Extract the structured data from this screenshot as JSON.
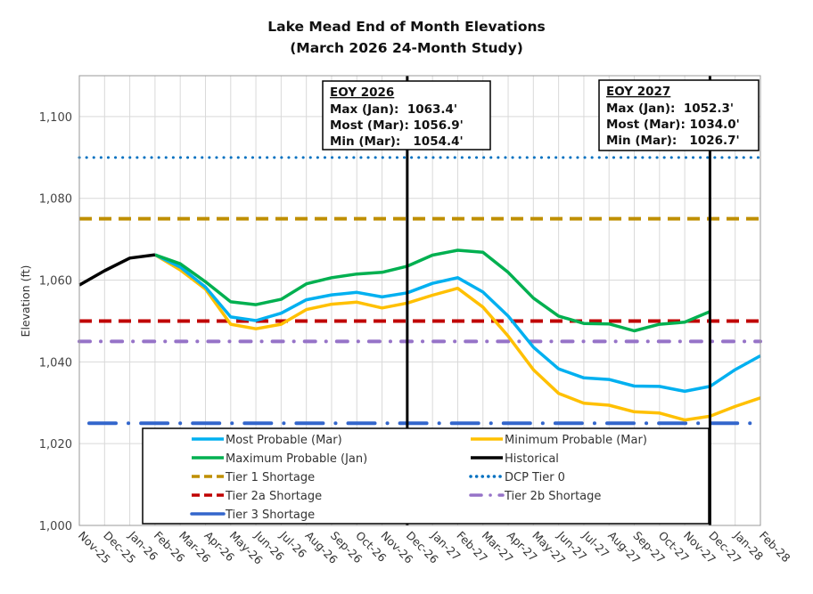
{
  "chart_data": {
    "type": "line",
    "title": "Lake Mead End of Month Elevations",
    "subtitle": "(March 2026 24-Month Study)",
    "xlabel": "",
    "ylabel": "Elevation (ft)",
    "ylim": [
      1000,
      1110
    ],
    "yticks": [
      1000,
      1020,
      1040,
      1060,
      1080,
      1100
    ],
    "ytick_labels": [
      "1,000",
      "1,020",
      "1,040",
      "1,060",
      "1,080",
      "1,100"
    ],
    "grid": true,
    "legend_position": "bottom-inside",
    "categories": [
      "Nov-25",
      "Dec-25",
      "Jan-26",
      "Feb-26",
      "Mar-26",
      "Apr-26",
      "May-26",
      "Jun-26",
      "Jul-26",
      "Aug-26",
      "Sep-26",
      "Oct-26",
      "Nov-26",
      "Dec-26",
      "Jan-27",
      "Feb-27",
      "Mar-27",
      "Apr-27",
      "May-27",
      "Jun-27",
      "Jul-27",
      "Aug-27",
      "Sep-27",
      "Oct-27",
      "Nov-27",
      "Dec-27",
      "Jan-28",
      "Feb-28"
    ],
    "series": [
      {
        "name": "Historical",
        "color": "#000000",
        "style": "solid",
        "values": [
          1058.8,
          1062.3,
          1065.4,
          1066.2,
          null,
          null,
          null,
          null,
          null,
          null,
          null,
          null,
          null,
          null,
          null,
          null,
          null,
          null,
          null,
          null,
          null,
          null,
          null,
          null,
          null,
          null,
          null,
          null
        ]
      },
      {
        "name": "Minimum Probable (Mar)",
        "color": "#FFC000",
        "style": "solid",
        "values": [
          null,
          null,
          null,
          1066.2,
          1062.5,
          1057.8,
          1049.2,
          1048.1,
          1049.2,
          1052.8,
          1054.1,
          1054.6,
          1053.2,
          1054.4,
          1056.3,
          1058.0,
          1053.4,
          1046.3,
          1038.1,
          1032.3,
          1029.9,
          1029.4,
          1027.8,
          1027.5,
          1025.8,
          1026.7,
          1029.1,
          1031.2
        ]
      },
      {
        "name": "Most Probable (Mar)",
        "color": "#00B0F0",
        "style": "solid",
        "values": [
          null,
          null,
          null,
          1066.2,
          1063.2,
          1058.3,
          1051.0,
          1050.1,
          1051.9,
          1055.2,
          1056.4,
          1057.0,
          1055.9,
          1056.9,
          1059.2,
          1060.6,
          1057.1,
          1051.2,
          1043.6,
          1038.3,
          1036.1,
          1035.7,
          1034.1,
          1034.0,
          1032.8,
          1034.0,
          1038.1,
          1041.5
        ]
      },
      {
        "name": "Maximum Probable (Jan)",
        "color": "#00B050",
        "style": "solid",
        "values": [
          null,
          null,
          null,
          1066.2,
          1064.0,
          1059.6,
          1054.7,
          1054.0,
          1055.3,
          1059.1,
          1060.6,
          1061.5,
          1061.9,
          1063.4,
          1066.1,
          1067.3,
          1066.8,
          1061.9,
          1055.6,
          1051.2,
          1049.4,
          1049.3,
          1047.6,
          1049.2,
          1049.7,
          1052.3,
          null,
          null
        ]
      }
    ],
    "reference_lines": [
      {
        "name": "DCP Tier 0",
        "value": 1090,
        "color": "#0070C0",
        "style": "dotted"
      },
      {
        "name": "Tier 1 Shortage",
        "value": 1075,
        "color": "#BF8F00",
        "style": "dashed"
      },
      {
        "name": "Tier 2a Shortage",
        "value": 1050,
        "color": "#C00000",
        "style": "dashed"
      },
      {
        "name": "Tier 2b Shortage",
        "value": 1045,
        "color": "#9673C8",
        "style": "dash-dot"
      },
      {
        "name": "Tier 3 Shortage",
        "value": 1025,
        "color": "#3366CC",
        "style": "long-dash-dot"
      }
    ],
    "vertical_markers": [
      {
        "category": "Dec-26",
        "color": "#000000"
      },
      {
        "category": "Dec-27",
        "color": "#000000"
      }
    ],
    "annotations": [
      {
        "anchor": "Dec-26",
        "heading": "EOY 2026",
        "lines": [
          "Max (Jan):  1063.4'",
          "Most (Mar): 1056.9'",
          "Min (Mar):   1054.4'"
        ]
      },
      {
        "anchor": "Dec-27",
        "heading": "EOY 2027",
        "lines": [
          "Max (Jan):  1052.3'",
          "Most (Mar): 1034.0'",
          "Min (Mar):   1026.7'"
        ]
      }
    ],
    "legend": [
      {
        "label": "Most Probable (Mar)",
        "color": "#00B0F0",
        "style": "solid"
      },
      {
        "label": "Minimum Probable (Mar)",
        "color": "#FFC000",
        "style": "solid"
      },
      {
        "label": "Maximum Probable (Jan)",
        "color": "#00B050",
        "style": "solid"
      },
      {
        "label": "Historical",
        "color": "#000000",
        "style": "solid"
      },
      {
        "label": "Tier 1 Shortage",
        "color": "#BF8F00",
        "style": "dashed"
      },
      {
        "label": "DCP Tier 0",
        "color": "#0070C0",
        "style": "dotted"
      },
      {
        "label": "Tier 2a Shortage",
        "color": "#C00000",
        "style": "dashed"
      },
      {
        "label": "Tier 2b Shortage",
        "color": "#9673C8",
        "style": "dash-dot"
      },
      {
        "label": "Tier 3 Shortage",
        "color": "#3366CC",
        "style": "long-dash-dot"
      }
    ]
  }
}
